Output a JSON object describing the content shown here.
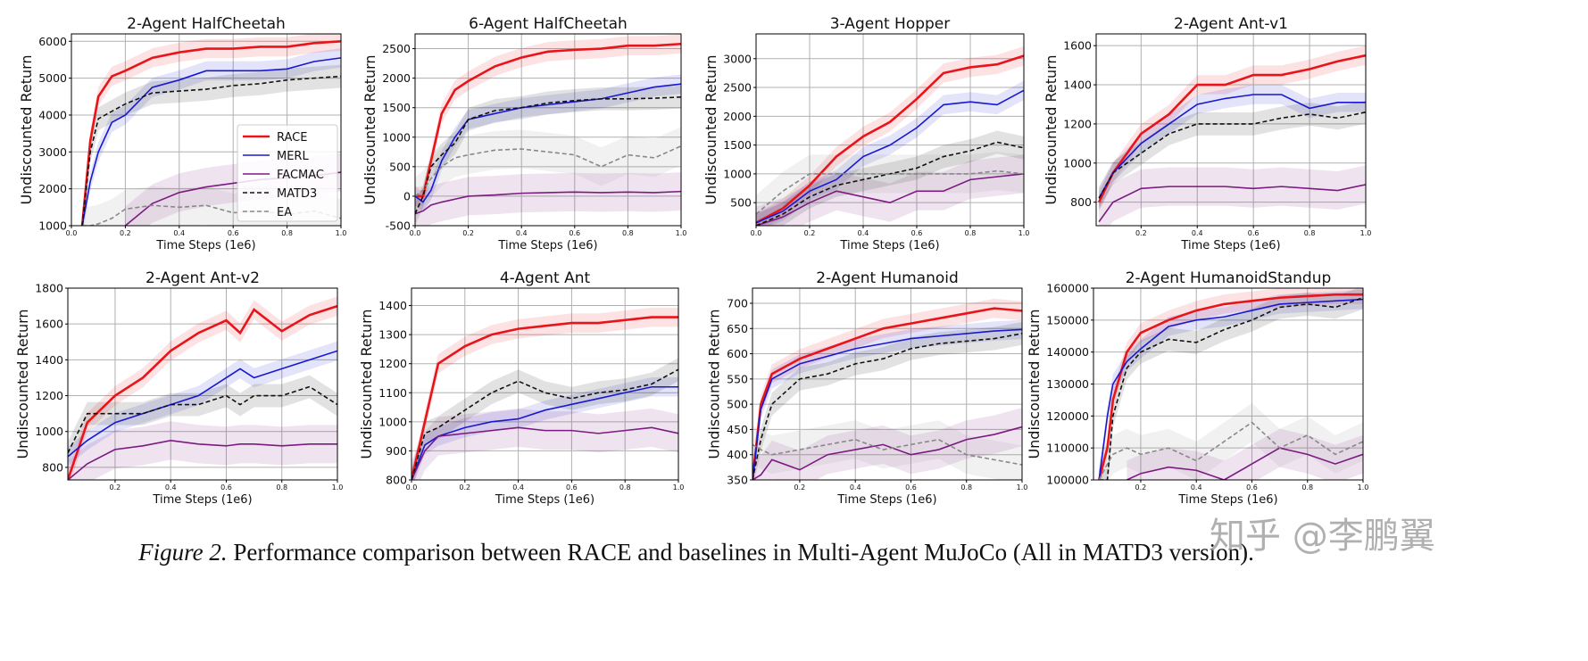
{
  "colors": {
    "RACE": "#e8141a",
    "MERL": "#1818d0",
    "FACMAC": "#7b1a80",
    "MATD3": "#111111",
    "EA": "#888888"
  },
  "legend": [
    "RACE",
    "MERL",
    "FACMAC",
    "MATD3",
    "EA"
  ],
  "chart_data": [
    {
      "type": "line",
      "title": "2-Agent HalfCheetah",
      "xlabel": "Time Steps (1e6)",
      "ylabel": "Undiscounted Return",
      "xlim": [
        0,
        1
      ],
      "ylim": [
        1000,
        6200
      ],
      "xticks": [
        "0.0",
        "0.2",
        "0.4",
        "0.6",
        "0.8",
        "1.0"
      ],
      "yticks": [
        1000,
        2000,
        3000,
        4000,
        5000,
        6000
      ],
      "grid": true,
      "legend": "center-right",
      "x": [
        0.04,
        0.07,
        0.1,
        0.15,
        0.2,
        0.3,
        0.4,
        0.5,
        0.6,
        0.7,
        0.8,
        0.9,
        1.0
      ],
      "series": [
        {
          "name": "RACE",
          "values": [
            1000,
            3300,
            4500,
            5050,
            5200,
            5550,
            5700,
            5800,
            5800,
            5850,
            5850,
            5950,
            6000
          ]
        },
        {
          "name": "MERL",
          "values": [
            1000,
            2200,
            3000,
            3800,
            4000,
            4750,
            4950,
            5200,
            5200,
            5200,
            5250,
            5450,
            5550
          ]
        },
        {
          "name": "FACMAC",
          "values": [
            null,
            null,
            null,
            null,
            1000,
            1600,
            1900,
            2050,
            2150,
            2250,
            2300,
            2350,
            2450
          ]
        },
        {
          "name": "MATD3",
          "values": [
            1000,
            3000,
            3900,
            4100,
            4300,
            4600,
            4650,
            4700,
            4800,
            4850,
            4950,
            5000,
            5050
          ]
        },
        {
          "name": "EA",
          "values": [
            1000,
            1000,
            1050,
            1200,
            1450,
            1550,
            1500,
            1550,
            1350,
            1400,
            1300,
            1400,
            1200
          ]
        }
      ]
    },
    {
      "type": "line",
      "title": "6-Agent HalfCheetah",
      "xlabel": "Time Steps (1e6)",
      "ylabel": "Undiscounted Return",
      "xlim": [
        0,
        1
      ],
      "ylim": [
        -500,
        2750
      ],
      "xticks": [
        "0.0",
        "0.2",
        "0.4",
        "0.6",
        "0.8",
        "1.0"
      ],
      "yticks": [
        -500,
        0,
        500,
        1000,
        1500,
        2000,
        2500
      ],
      "grid": true,
      "x": [
        0,
        0.03,
        0.06,
        0.1,
        0.15,
        0.2,
        0.3,
        0.4,
        0.5,
        0.6,
        0.7,
        0.8,
        0.9,
        1.0
      ],
      "series": [
        {
          "name": "RACE",
          "values": [
            0,
            0,
            600,
            1400,
            1800,
            1950,
            2200,
            2350,
            2450,
            2480,
            2500,
            2550,
            2550,
            2580
          ]
        },
        {
          "name": "MERL",
          "values": [
            0,
            -100,
            100,
            600,
            1000,
            1300,
            1400,
            1500,
            1550,
            1600,
            1650,
            1750,
            1850,
            1900
          ]
        },
        {
          "name": "FACMAC",
          "values": [
            -300,
            -250,
            -150,
            -100,
            -50,
            0,
            20,
            50,
            60,
            70,
            60,
            70,
            60,
            80
          ]
        },
        {
          "name": "MATD3",
          "values": [
            -300,
            0,
            500,
            700,
            900,
            1300,
            1450,
            1500,
            1580,
            1620,
            1650,
            1650,
            1660,
            1680
          ]
        },
        {
          "name": "EA",
          "values": [
            0,
            100,
            300,
            500,
            650,
            700,
            780,
            800,
            750,
            700,
            500,
            700,
            650,
            850
          ]
        }
      ]
    },
    {
      "type": "line",
      "title": "3-Agent Hopper",
      "xlabel": "Time Steps (1e6)",
      "ylabel": "Undiscounted Return",
      "xlim": [
        0,
        1
      ],
      "ylim": [
        100,
        3430
      ],
      "xticks": [
        "0.0",
        "0.2",
        "0.4",
        "0.6",
        "0.8",
        "1.0"
      ],
      "yticks": [
        500,
        1000,
        1500,
        2000,
        2500,
        3000
      ],
      "grid": true,
      "x": [
        0,
        0.1,
        0.2,
        0.3,
        0.4,
        0.5,
        0.6,
        0.7,
        0.8,
        0.9,
        1.0
      ],
      "series": [
        {
          "name": "RACE",
          "values": [
            150,
            400,
            800,
            1300,
            1650,
            1900,
            2300,
            2750,
            2850,
            2900,
            3050
          ]
        },
        {
          "name": "MERL",
          "values": [
            150,
            350,
            700,
            900,
            1300,
            1500,
            1800,
            2200,
            2250,
            2200,
            2450
          ]
        },
        {
          "name": "FACMAC",
          "values": [
            100,
            250,
            500,
            700,
            600,
            500,
            700,
            700,
            900,
            950,
            1000
          ]
        },
        {
          "name": "MATD3",
          "values": [
            100,
            300,
            600,
            800,
            900,
            1000,
            1100,
            1300,
            1400,
            1550,
            1450
          ]
        },
        {
          "name": "EA",
          "values": [
            300,
            700,
            1000,
            1000,
            1000,
            1000,
            1000,
            1000,
            1000,
            1050,
            1000
          ]
        }
      ]
    },
    {
      "type": "line",
      "title": "2-Agent Ant-v1",
      "xlabel": "Time Steps (1e6)",
      "ylabel": "Undiscounted Return",
      "xlim": [
        0.04,
        1
      ],
      "ylim": [
        680,
        1660
      ],
      "xticks": [
        "0.2",
        "0.4",
        "0.6",
        "0.8",
        "1.0"
      ],
      "yticks": [
        800,
        1000,
        1200,
        1400,
        1600
      ],
      "grid": true,
      "x": [
        0.05,
        0.1,
        0.2,
        0.3,
        0.4,
        0.5,
        0.6,
        0.7,
        0.8,
        0.9,
        1.0
      ],
      "series": [
        {
          "name": "RACE",
          "values": [
            800,
            950,
            1150,
            1250,
            1400,
            1400,
            1450,
            1450,
            1480,
            1520,
            1550
          ]
        },
        {
          "name": "MERL",
          "values": [
            820,
            950,
            1100,
            1200,
            1300,
            1330,
            1350,
            1350,
            1280,
            1310,
            1310
          ]
        },
        {
          "name": "FACMAC",
          "values": [
            700,
            800,
            870,
            880,
            880,
            880,
            870,
            880,
            870,
            860,
            890
          ]
        },
        {
          "name": "MATD3",
          "values": [
            820,
            950,
            1050,
            1150,
            1200,
            1200,
            1200,
            1230,
            1250,
            1230,
            1260
          ]
        }
      ]
    },
    {
      "type": "line",
      "title": "2-Agent Ant-v2",
      "xlabel": "Time Steps (1e6)",
      "ylabel": "Undiscounted Return",
      "xlim": [
        0.03,
        1
      ],
      "ylim": [
        730,
        1800
      ],
      "xticks": [
        "0.2",
        "0.4",
        "0.6",
        "0.8",
        "1.0"
      ],
      "yticks": [
        800,
        1000,
        1200,
        1400,
        1600,
        1800
      ],
      "grid": true,
      "x": [
        0.03,
        0.1,
        0.2,
        0.3,
        0.4,
        0.5,
        0.6,
        0.65,
        0.7,
        0.8,
        0.9,
        1.0
      ],
      "series": [
        {
          "name": "RACE",
          "values": [
            730,
            1050,
            1200,
            1300,
            1450,
            1550,
            1620,
            1550,
            1680,
            1560,
            1650,
            1700
          ]
        },
        {
          "name": "MERL",
          "values": [
            860,
            950,
            1050,
            1100,
            1150,
            1200,
            1300,
            1350,
            1300,
            1350,
            1400,
            1450
          ]
        },
        {
          "name": "FACMAC",
          "values": [
            730,
            820,
            900,
            920,
            950,
            930,
            920,
            930,
            930,
            920,
            930,
            930
          ]
        },
        {
          "name": "MATD3",
          "values": [
            880,
            1100,
            1100,
            1100,
            1150,
            1150,
            1200,
            1150,
            1200,
            1200,
            1250,
            1150
          ]
        }
      ]
    },
    {
      "type": "line",
      "title": "4-Agent Ant",
      "xlabel": "Time Steps (1e6)",
      "ylabel": "Undiscounted Return",
      "xlim": [
        0,
        1
      ],
      "ylim": [
        800,
        1460
      ],
      "xticks": [
        "0.0",
        "0.2",
        "0.4",
        "0.6",
        "0.8",
        "1.0"
      ],
      "yticks": [
        800,
        900,
        1000,
        1100,
        1200,
        1300,
        1400
      ],
      "grid": true,
      "x": [
        0,
        0.05,
        0.1,
        0.2,
        0.3,
        0.4,
        0.5,
        0.6,
        0.7,
        0.8,
        0.9,
        1.0
      ],
      "series": [
        {
          "name": "RACE",
          "values": [
            800,
            1000,
            1200,
            1260,
            1300,
            1320,
            1330,
            1340,
            1340,
            1350,
            1360,
            1360
          ]
        },
        {
          "name": "MERL",
          "values": [
            800,
            920,
            950,
            980,
            1000,
            1010,
            1040,
            1060,
            1080,
            1100,
            1120,
            1120
          ]
        },
        {
          "name": "FACMAC",
          "values": [
            800,
            900,
            950,
            960,
            970,
            980,
            970,
            970,
            960,
            970,
            980,
            960
          ]
        },
        {
          "name": "MATD3",
          "values": [
            800,
            960,
            980,
            1040,
            1100,
            1140,
            1100,
            1080,
            1100,
            1110,
            1130,
            1180
          ]
        }
      ]
    },
    {
      "type": "line",
      "title": "2-Agent Humanoid",
      "xlabel": "Time Steps (1e6)",
      "ylabel": "Undiscounted Return",
      "xlim": [
        0.03,
        1
      ],
      "ylim": [
        350,
        730
      ],
      "xticks": [
        "0.2",
        "0.4",
        "0.6",
        "0.8",
        "1.0"
      ],
      "yticks": [
        350,
        400,
        450,
        500,
        550,
        600,
        650,
        700
      ],
      "grid": true,
      "x": [
        0.03,
        0.06,
        0.1,
        0.2,
        0.3,
        0.4,
        0.5,
        0.6,
        0.7,
        0.8,
        0.9,
        1.0
      ],
      "series": [
        {
          "name": "RACE",
          "values": [
            350,
            500,
            560,
            590,
            610,
            630,
            650,
            660,
            670,
            680,
            690,
            685
          ]
        },
        {
          "name": "MERL",
          "values": [
            350,
            490,
            550,
            580,
            595,
            610,
            620,
            630,
            635,
            640,
            645,
            648
          ]
        },
        {
          "name": "FACMAC",
          "values": [
            350,
            360,
            390,
            370,
            400,
            410,
            420,
            400,
            410,
            430,
            440,
            455
          ]
        },
        {
          "name": "MATD3",
          "values": [
            350,
            430,
            500,
            550,
            560,
            580,
            590,
            610,
            620,
            625,
            630,
            640
          ]
        },
        {
          "name": "EA",
          "values": [
            420,
            410,
            400,
            410,
            420,
            430,
            410,
            420,
            430,
            400,
            390,
            380
          ]
        }
      ]
    },
    {
      "type": "line",
      "title": "2-Agent HumanoidStandup",
      "xlabel": "Time Steps (1e6)",
      "ylabel": "Undiscounted Return",
      "xlim": [
        0.03,
        1
      ],
      "ylim": [
        100000,
        160000
      ],
      "xticks": [
        "0.2",
        "0.4",
        "0.6",
        "0.8",
        "1.0"
      ],
      "yticks": [
        100000,
        110000,
        120000,
        130000,
        140000,
        150000,
        160000
      ],
      "grid": true,
      "x": [
        0.05,
        0.08,
        0.1,
        0.15,
        0.2,
        0.3,
        0.4,
        0.5,
        0.6,
        0.7,
        0.8,
        0.9,
        1.0
      ],
      "series": [
        {
          "name": "RACE",
          "values": [
            100000,
            110000,
            125000,
            140000,
            146000,
            150000,
            153000,
            155000,
            156000,
            157000,
            157500,
            158000,
            158000
          ]
        },
        {
          "name": "MERL",
          "values": [
            100000,
            120000,
            130000,
            137000,
            141000,
            148000,
            150000,
            151000,
            153000,
            155000,
            155500,
            156000,
            156500
          ]
        },
        {
          "name": "FACMAC",
          "values": [
            null,
            null,
            null,
            100000,
            102000,
            104000,
            103000,
            100000,
            105000,
            110000,
            108000,
            105000,
            108000
          ]
        },
        {
          "name": "MATD3",
          "values": [
            100000,
            100000,
            120000,
            135000,
            140000,
            144000,
            143000,
            147000,
            150000,
            154000,
            155000,
            154000,
            157000
          ]
        },
        {
          "name": "EA",
          "values": [
            100000,
            105000,
            108000,
            110000,
            108000,
            110000,
            106000,
            112000,
            118000,
            110000,
            114000,
            108000,
            112000
          ]
        }
      ]
    }
  ],
  "caption": {
    "label": "Figure 2.",
    "text": " Performance comparison between RACE and baselines in Multi-Agent MuJoCo (All in MATD3 version)."
  },
  "watermark": "知乎 @李鹏翼"
}
